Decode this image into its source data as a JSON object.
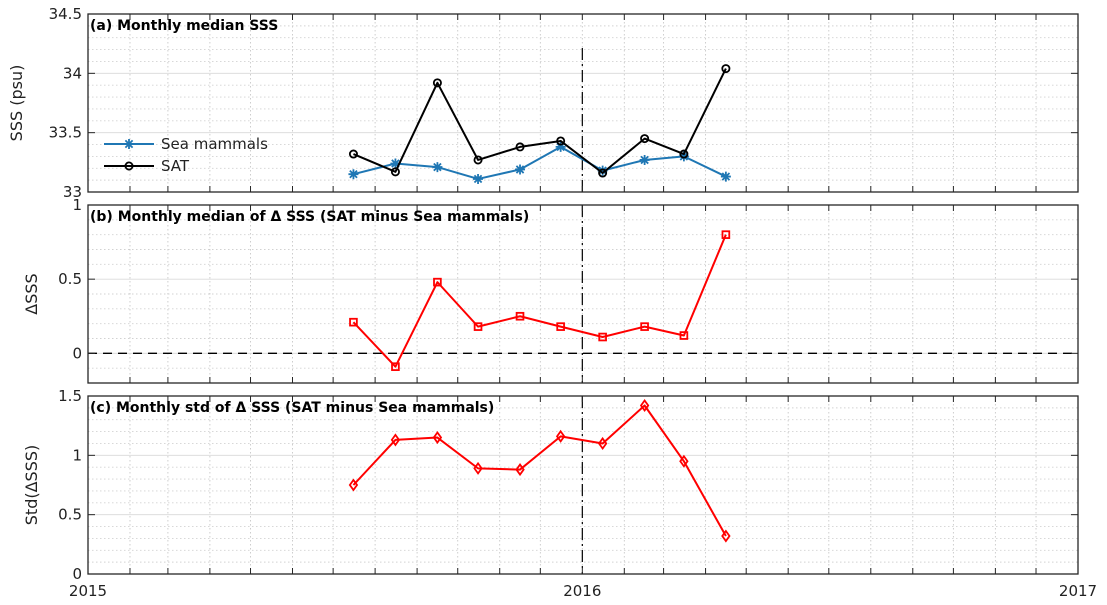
{
  "chart_data": [
    {
      "type": "line",
      "title": "(a) Monthly median SSS",
      "ylabel": "SSS (psu)",
      "xlabel": "",
      "xlim": [
        "2015-01-01",
        "2017-01-01"
      ],
      "ylim": [
        33,
        34.5
      ],
      "yticks": [
        33,
        33.5,
        34,
        34.5
      ],
      "yticklabels": [
        "33",
        "33.5",
        "34",
        "34.5"
      ],
      "grid": true,
      "legend": "left",
      "x": [
        "2015-07-16",
        "2015-08-16",
        "2015-09-16",
        "2015-10-16",
        "2015-11-16",
        "2015-12-16",
        "2016-01-16",
        "2016-02-16",
        "2016-03-16",
        "2016-04-16"
      ],
      "series": [
        {
          "name": "Sea mammals",
          "color": "#1f77b4",
          "marker": "asterisk",
          "values": [
            33.15,
            33.24,
            33.21,
            33.11,
            33.19,
            33.38,
            33.18,
            33.27,
            33.3,
            33.13
          ]
        },
        {
          "name": "SAT",
          "color": "#000000",
          "marker": "circle",
          "values": [
            33.32,
            33.17,
            33.92,
            33.27,
            33.38,
            33.43,
            33.16,
            33.45,
            33.32,
            34.04
          ]
        }
      ]
    },
    {
      "type": "line",
      "title": "(b) Monthly median of Δ SSS (SAT minus Sea mammals)",
      "ylabel": "ΔSSS",
      "xlabel": "",
      "xlim": [
        "2015-01-01",
        "2017-01-01"
      ],
      "ylim": [
        -0.2,
        1
      ],
      "yticks": [
        0,
        0.5,
        1
      ],
      "yticklabels": [
        "0",
        "0.5",
        "1"
      ],
      "grid": true,
      "zero_line": "dashed",
      "x": [
        "2015-07-16",
        "2015-08-16",
        "2015-09-16",
        "2015-10-16",
        "2015-11-16",
        "2015-12-16",
        "2016-01-16",
        "2016-02-16",
        "2016-03-16",
        "2016-04-16"
      ],
      "series": [
        {
          "color": "#ff0000",
          "marker": "square",
          "values": [
            0.21,
            -0.09,
            0.48,
            0.18,
            0.25,
            0.18,
            0.11,
            0.18,
            0.12,
            0.8
          ]
        }
      ]
    },
    {
      "type": "line",
      "title": "(c) Monthly std of Δ SSS (SAT minus Sea mammals)",
      "ylabel": "Std(ΔSSS)",
      "xlabel": "",
      "xlim": [
        "2015-01-01",
        "2017-01-01"
      ],
      "xticks": [
        "2015-01-01",
        "2016-01-01",
        "2017-01-01"
      ],
      "xticklabels": [
        "2015",
        "2016",
        "2017"
      ],
      "ylim": [
        0,
        1.5
      ],
      "yticks": [
        0,
        0.5,
        1,
        1.5
      ],
      "yticklabels": [
        "0",
        "0.5",
        "1",
        "1.5"
      ],
      "grid": true,
      "x": [
        "2015-07-16",
        "2015-08-16",
        "2015-09-16",
        "2015-10-16",
        "2015-11-16",
        "2015-12-16",
        "2016-01-16",
        "2016-02-16",
        "2016-03-16",
        "2016-04-16"
      ],
      "series": [
        {
          "color": "#ff0000",
          "marker": "diamond",
          "values": [
            0.75,
            1.13,
            1.15,
            0.89,
            0.88,
            1.16,
            1.1,
            1.42,
            0.95,
            0.32
          ]
        }
      ]
    }
  ],
  "vertical_marker": {
    "date": "2016-01-01",
    "style": "dash-dot",
    "color": "#000000"
  }
}
